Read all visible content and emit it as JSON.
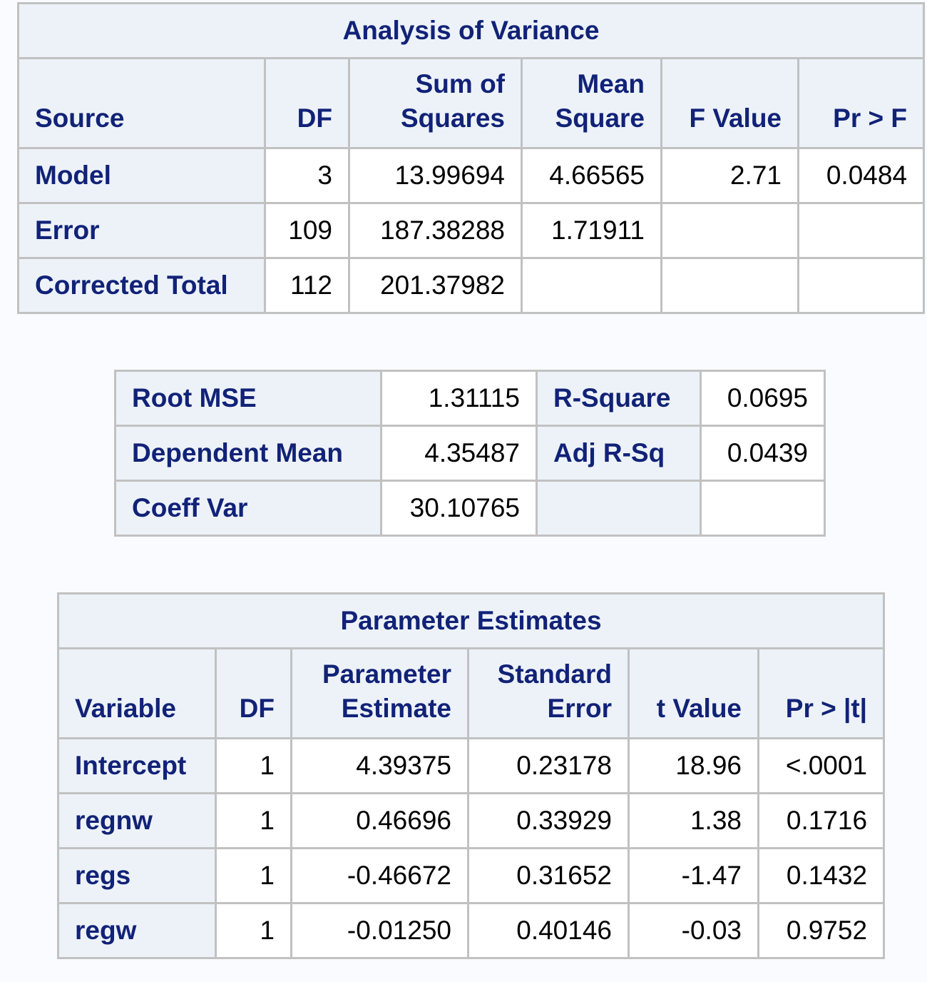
{
  "anova": {
    "title": "Analysis of Variance",
    "headers": {
      "source": "Source",
      "df": "DF",
      "ss_line1": "Sum of",
      "ss_line2": "Squares",
      "ms_line1": "Mean",
      "ms_line2": "Square",
      "f_value": "F Value",
      "pr_f": "Pr > F"
    },
    "rows": [
      {
        "source": "Model",
        "df": "3",
        "ss": "13.99694",
        "ms": "4.66565",
        "f": "2.71",
        "p": "0.0484"
      },
      {
        "source": "Error",
        "df": "109",
        "ss": "187.38288",
        "ms": "1.71911",
        "f": "",
        "p": ""
      },
      {
        "source": "Corrected Total",
        "df": "112",
        "ss": "201.37982",
        "ms": "",
        "f": "",
        "p": ""
      }
    ]
  },
  "fit": {
    "rows": [
      {
        "label1": "Root MSE",
        "value1": "1.31115",
        "label2": "R-Square",
        "value2": "0.0695"
      },
      {
        "label1": "Dependent Mean",
        "value1": "4.35487",
        "label2": "Adj R-Sq",
        "value2": "0.0439"
      },
      {
        "label1": "Coeff Var",
        "value1": "30.10765",
        "label2": "",
        "value2": ""
      }
    ]
  },
  "params": {
    "title": "Parameter Estimates",
    "headers": {
      "variable": "Variable",
      "df": "DF",
      "est_line1": "Parameter",
      "est_line2": "Estimate",
      "se_line1": "Standard",
      "se_line2": "Error",
      "t_value": "t Value",
      "pr_t": "Pr > |t|"
    },
    "rows": [
      {
        "variable": "Intercept",
        "df": "1",
        "estimate": "4.39375",
        "se": "0.23178",
        "t": "18.96",
        "p": "<.0001"
      },
      {
        "variable": "regnw",
        "df": "1",
        "estimate": "0.46696",
        "se": "0.33929",
        "t": "1.38",
        "p": "0.1716"
      },
      {
        "variable": "regs",
        "df": "1",
        "estimate": "-0.46672",
        "se": "0.31652",
        "t": "-1.47",
        "p": "0.1432"
      },
      {
        "variable": "regw",
        "df": "1",
        "estimate": "-0.01250",
        "se": "0.40146",
        "t": "-0.03",
        "p": "0.9752"
      }
    ]
  }
}
